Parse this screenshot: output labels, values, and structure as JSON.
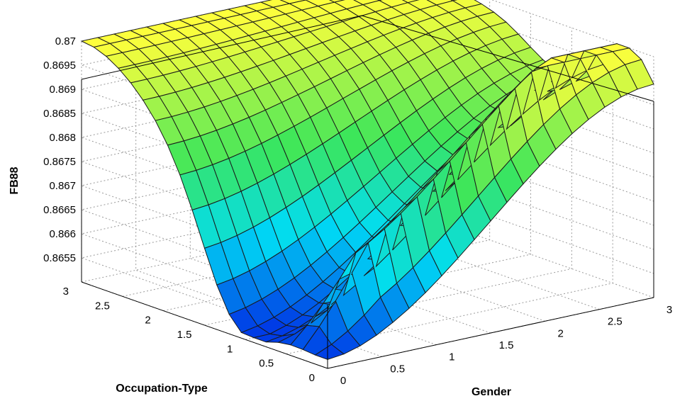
{
  "chart_data": {
    "type": "surface",
    "title": "",
    "xlabel": "Gender",
    "ylabel": "Occupation-Type",
    "zlabel": "FB88",
    "xlim": [
      0,
      3
    ],
    "ylim": [
      0,
      3
    ],
    "zlim": [
      0.865,
      0.87
    ],
    "x_ticks": [
      "0",
      "0.5",
      "1",
      "1.5",
      "2",
      "2.5",
      "3"
    ],
    "y_ticks": [
      "0",
      "0.5",
      "1",
      "1.5",
      "2",
      "2.5",
      "3"
    ],
    "z_ticks": [
      "0.8655",
      "0.866",
      "0.8665",
      "0.867",
      "0.8675",
      "0.868",
      "0.8685",
      "0.869",
      "0.8695",
      "0.87"
    ],
    "grid": true,
    "colormap": "jet",
    "z_at_corners": {
      "gender_0_occupation_0": 0.8652,
      "gender_3_occupation_0": 0.8694,
      "gender_0_occupation_3": 0.87,
      "gender_3_occupation_3": 0.87
    }
  }
}
